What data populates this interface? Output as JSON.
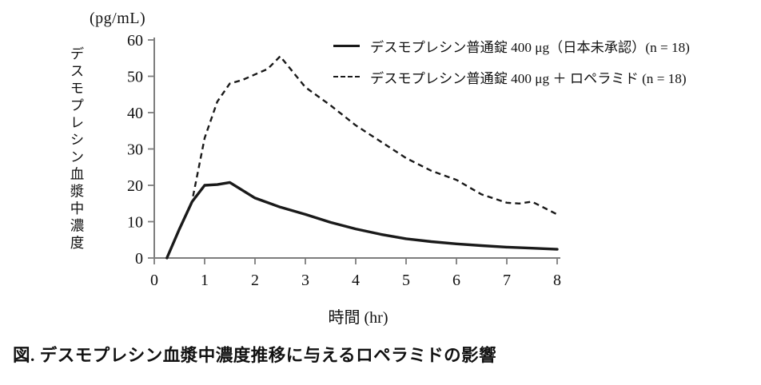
{
  "chart_data": {
    "type": "line",
    "title": "図. デスモプレシン血漿中濃度推移に与えるロペラミドの影響",
    "xlabel": "時間 (hr)",
    "ylabel": "デスモプレシン血漿中濃度",
    "y_units": "(pg/mL)",
    "xlim": [
      0,
      8
    ],
    "ylim": [
      0,
      60
    ],
    "xticks": [
      0,
      1,
      2,
      3,
      4,
      5,
      6,
      7,
      8
    ],
    "yticks": [
      0,
      10,
      20,
      30,
      40,
      50,
      60
    ],
    "grid": false,
    "legend_position": "top-right",
    "line_color": "#1a1a1a",
    "series": [
      {
        "name": "デスモプレシン普通錠 400 μg（日本未承認）(n = 18)",
        "style": "solid",
        "color": "#1a1a1a",
        "points": [
          [
            0.25,
            0
          ],
          [
            0.5,
            8
          ],
          [
            0.75,
            15.5
          ],
          [
            1,
            20
          ],
          [
            1.25,
            20.2
          ],
          [
            1.5,
            20.8
          ],
          [
            2,
            16.5
          ],
          [
            2.5,
            14
          ],
          [
            3,
            12
          ],
          [
            3.5,
            9.8
          ],
          [
            4,
            8
          ],
          [
            4.5,
            6.5
          ],
          [
            5,
            5.3
          ],
          [
            5.5,
            4.5
          ],
          [
            6,
            3.9
          ],
          [
            6.5,
            3.4
          ],
          [
            7,
            3
          ],
          [
            7.5,
            2.7
          ],
          [
            8,
            2.4
          ]
        ]
      },
      {
        "name": "デスモプレシン普通錠 400 μg ＋ ロペラミド (n = 18)",
        "style": "dashed",
        "color": "#1a1a1a",
        "points": [
          [
            0.77,
            17
          ],
          [
            1,
            33
          ],
          [
            1.25,
            43
          ],
          [
            1.5,
            48
          ],
          [
            1.75,
            49
          ],
          [
            2,
            50.5
          ],
          [
            2.25,
            52
          ],
          [
            2.5,
            55.5
          ],
          [
            3,
            47
          ],
          [
            3.5,
            42
          ],
          [
            4,
            36.5
          ],
          [
            4.5,
            32
          ],
          [
            5,
            27.5
          ],
          [
            5.5,
            24
          ],
          [
            6,
            21.5
          ],
          [
            6.5,
            17.5
          ],
          [
            7,
            15.2
          ],
          [
            7.25,
            15
          ],
          [
            7.5,
            15.5
          ],
          [
            8,
            12
          ]
        ]
      }
    ]
  }
}
